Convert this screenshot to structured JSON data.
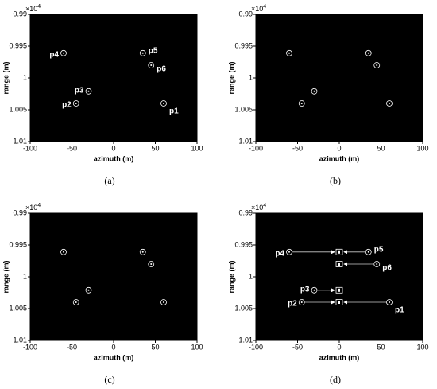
{
  "chart_data": [
    {
      "type": "scatter",
      "caption": "(a)",
      "xlabel": "azimuth (m)",
      "ylabel": "range (m)",
      "y_offset_base": "×10",
      "y_offset_exponent": "4",
      "y_inverted": true,
      "background": "#000000",
      "xlim": [
        -100,
        100
      ],
      "xticks": [
        -100,
        -50,
        0,
        50,
        100
      ],
      "ylim": [
        0.99,
        1.01
      ],
      "yticks": [
        0.99,
        0.995,
        1,
        1.005,
        1.01
      ],
      "series": [
        {
          "name": "points",
          "color": "#ffffff",
          "marker": "circle",
          "x": [
            60,
            -45,
            -30,
            -60,
            35,
            45
          ],
          "values": [
            1.004,
            1.004,
            1.0021,
            0.9961,
            0.9961,
            0.998
          ],
          "point_labels": [
            "p1",
            "p2",
            "p3",
            "p4",
            "p5",
            "p6"
          ]
        }
      ]
    },
    {
      "type": "scatter",
      "caption": "(b)",
      "xlabel": "azimuth (m)",
      "ylabel": "range (m)",
      "y_offset_base": "×10",
      "y_offset_exponent": "4",
      "y_inverted": true,
      "background": "#000000",
      "xlim": [
        -100,
        100
      ],
      "xticks": [
        -100,
        -50,
        0,
        50,
        100
      ],
      "ylim": [
        0.99,
        1.01
      ],
      "yticks": [
        0.99,
        0.995,
        1,
        1.005,
        1.01
      ],
      "series": [
        {
          "name": "points",
          "color": "#ffffff",
          "marker": "circle",
          "x": [
            60,
            -45,
            -30,
            -60,
            35,
            45
          ],
          "values": [
            1.004,
            1.004,
            1.0021,
            0.9961,
            0.9961,
            0.998
          ]
        }
      ]
    },
    {
      "type": "scatter",
      "caption": "(c)",
      "xlabel": "azimuth (m)",
      "ylabel": "range (m)",
      "y_offset_base": "×10",
      "y_offset_exponent": "4",
      "y_inverted": true,
      "background": "#000000",
      "xlim": [
        -100,
        100
      ],
      "xticks": [
        -100,
        -50,
        0,
        50,
        100
      ],
      "ylim": [
        0.99,
        1.01
      ],
      "yticks": [
        0.99,
        0.995,
        1,
        1.005,
        1.01
      ],
      "series": [
        {
          "name": "points",
          "color": "#ffffff",
          "marker": "circle",
          "x": [
            60,
            -45,
            -30,
            -60,
            35,
            45
          ],
          "values": [
            1.004,
            1.004,
            1.0021,
            0.9961,
            0.9961,
            0.998
          ]
        }
      ]
    },
    {
      "type": "scatter",
      "caption": "(d)",
      "xlabel": "azimuth (m)",
      "ylabel": "range (m)",
      "y_offset_base": "×10",
      "y_offset_exponent": "4",
      "y_inverted": true,
      "background": "#000000",
      "xlim": [
        -100,
        100
      ],
      "xticks": [
        -100,
        -50,
        0,
        50,
        100
      ],
      "ylim": [
        0.99,
        1.01
      ],
      "yticks": [
        0.99,
        0.995,
        1,
        1.005,
        1.01
      ],
      "series": [
        {
          "name": "points",
          "color": "#ffffff",
          "marker": "circle",
          "x": [
            60,
            -45,
            -30,
            -60,
            35,
            45
          ],
          "values": [
            1.004,
            1.004,
            1.0021,
            0.9961,
            0.9961,
            0.998
          ],
          "point_labels": [
            "p1",
            "p2",
            "p3",
            "p4",
            "p5",
            "p6"
          ]
        },
        {
          "name": "targets",
          "color": "#ffffff",
          "marker": "square",
          "x": [
            0,
            0,
            0,
            0
          ],
          "values": [
            0.9961,
            0.998,
            1.0021,
            1.004
          ]
        }
      ]
    }
  ]
}
